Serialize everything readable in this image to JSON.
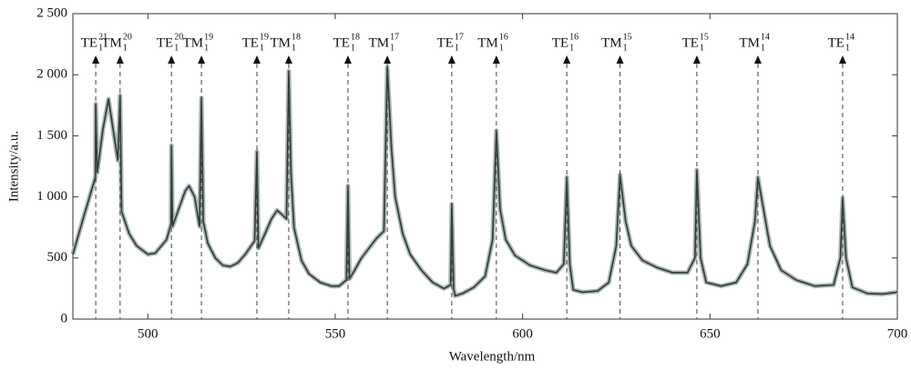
{
  "chart_data": {
    "type": "line",
    "xlabel": "Wavelength/nm",
    "ylabel": "Intensity/a.u.",
    "xlim": [
      480,
      700
    ],
    "xticks": [
      500,
      550,
      600,
      650,
      700
    ],
    "ylim": [
      0,
      2500
    ],
    "yticks": [
      0,
      500,
      {
        "value": 1000,
        "label": "1 000"
      },
      {
        "value": 1500,
        "label": "1 500"
      },
      {
        "value": 2000,
        "label": "2 000"
      },
      {
        "value": 2500,
        "label": "2 500"
      }
    ],
    "annotations": [
      {
        "base": "TE",
        "sub": "1",
        "sup": "21",
        "x": 486.1
      },
      {
        "base": "TM",
        "sub": "1",
        "sup": "20",
        "x": 492.6
      },
      {
        "base": "TE",
        "sub": "1",
        "sup": "20",
        "x": 506.3
      },
      {
        "base": "TM",
        "sub": "1",
        "sup": "19",
        "x": 514.3
      },
      {
        "base": "TE",
        "sub": "1",
        "sup": "19",
        "x": 529.1
      },
      {
        "base": "TM",
        "sub": "1",
        "sup": "18",
        "x": 537.6
      },
      {
        "base": "TE",
        "sub": "1",
        "sup": "18",
        "x": 553.4
      },
      {
        "base": "TM",
        "sub": "1",
        "sup": "17",
        "x": 563.9
      },
      {
        "base": "TE",
        "sub": "1",
        "sup": "17",
        "x": 581.1
      },
      {
        "base": "TM",
        "sub": "1",
        "sup": "16",
        "x": 593.0
      },
      {
        "base": "TE",
        "sub": "1",
        "sup": "16",
        "x": 611.8
      },
      {
        "base": "TM",
        "sub": "1",
        "sup": "15",
        "x": 626.0
      },
      {
        "base": "TE",
        "sub": "1",
        "sup": "15",
        "x": 646.5
      },
      {
        "base": "TM",
        "sub": "1",
        "sup": "14",
        "x": 662.8
      },
      {
        "base": "TE",
        "sub": "1",
        "sup": "14",
        "x": 685.4
      }
    ],
    "series": [
      {
        "color": "#2f3a37",
        "x": [
          480,
          483,
          486,
          486.1,
          486.5,
          488,
          489.5,
          491,
          492,
          492.6,
          493,
          495,
          497,
          500,
          502,
          505,
          506.2,
          506.3,
          506.6,
          508,
          510,
          511,
          512.5,
          513.8,
          514.3,
          514.8,
          516,
          518,
          520,
          522,
          524,
          526,
          528.5,
          529.1,
          529.5,
          531,
          533,
          534.5,
          536,
          537,
          537.6,
          538.2,
          539,
          541,
          543,
          546,
          549,
          551,
          553,
          553.4,
          553.8,
          555,
          557,
          559,
          561,
          563,
          563.9,
          565,
          566,
          568,
          570,
          573,
          576,
          579,
          580.8,
          581.1,
          581.6,
          582,
          584,
          587,
          590,
          592,
          593,
          594,
          595.5,
          598,
          602,
          606,
          609,
          611,
          611.8,
          612.6,
          613.5,
          616,
          620,
          623,
          625,
          626,
          627.5,
          629,
          632,
          636,
          640,
          644,
          646,
          646.5,
          647.5,
          649,
          653,
          657,
          660,
          662,
          662.8,
          664,
          666,
          669,
          673,
          678,
          683,
          684.8,
          685.4,
          686.3,
          688,
          692,
          696,
          700
        ],
        "values": [
          530,
          850,
          1160,
          1760,
          1200,
          1550,
          1800,
          1500,
          1300,
          1830,
          880,
          700,
          600,
          530,
          540,
          650,
          780,
          1420,
          760,
          880,
          1050,
          1090,
          1000,
          760,
          1810,
          800,
          620,
          500,
          440,
          430,
          460,
          530,
          640,
          1370,
          580,
          680,
          820,
          890,
          850,
          820,
          2030,
          1200,
          750,
          480,
          370,
          300,
          270,
          270,
          320,
          1090,
          330,
          390,
          500,
          580,
          660,
          720,
          2060,
          1400,
          1000,
          700,
          530,
          400,
          300,
          250,
          280,
          940,
          250,
          190,
          210,
          260,
          350,
          650,
          1540,
          900,
          650,
          520,
          440,
          400,
          380,
          450,
          1160,
          450,
          240,
          220,
          230,
          300,
          600,
          1180,
          800,
          600,
          480,
          420,
          380,
          380,
          500,
          1220,
          500,
          300,
          270,
          300,
          450,
          800,
          1160,
          950,
          600,
          400,
          320,
          270,
          280,
          500,
          990,
          500,
          260,
          210,
          205,
          220
        ]
      }
    ]
  }
}
